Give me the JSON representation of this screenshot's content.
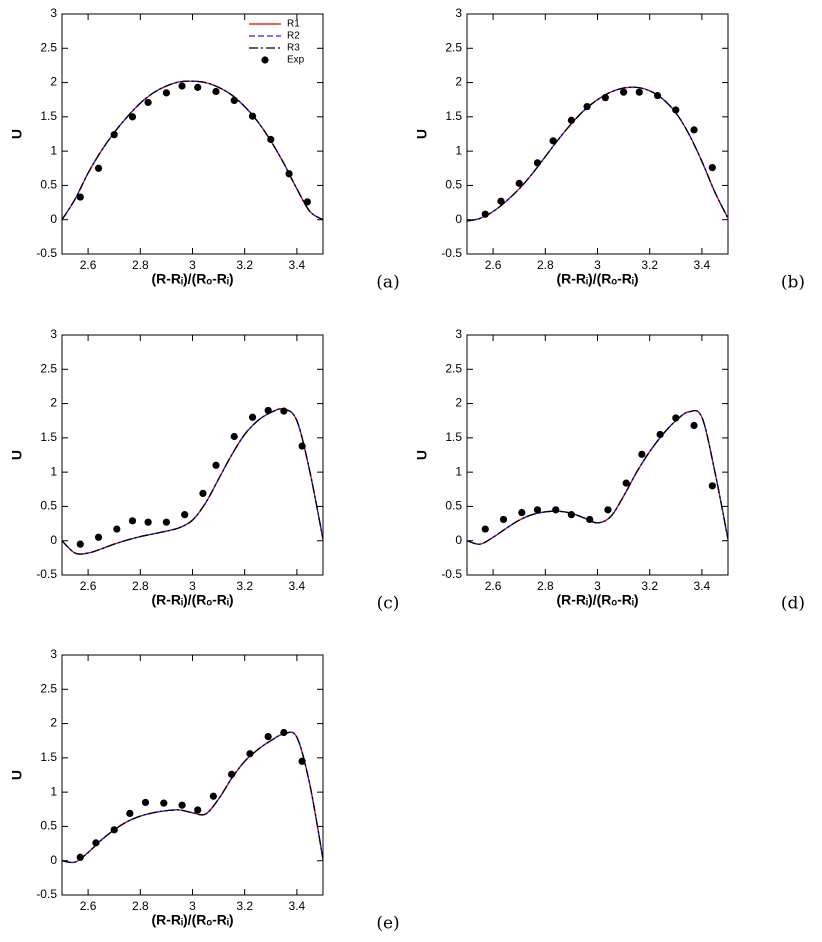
{
  "chart_data": [
    {
      "type": "line",
      "panel_label": "(a)",
      "xlabel": "(R-Rᵢ)/(Rₒ-Rᵢ)",
      "ylabel": "U",
      "legend": true,
      "legend_position": "upper right",
      "xlim": [
        2.5,
        3.5
      ],
      "ylim": [
        -0.5,
        3
      ],
      "xticks": [
        2.6,
        2.8,
        3,
        3.2,
        3.4
      ],
      "yticks": [
        -0.5,
        0,
        0.5,
        1,
        1.5,
        2,
        2.5,
        3
      ],
      "x": [
        2.5,
        2.55,
        2.6,
        2.65,
        2.7,
        2.75,
        2.8,
        2.85,
        2.9,
        2.95,
        3.0,
        3.05,
        3.1,
        3.15,
        3.2,
        3.25,
        3.3,
        3.35,
        3.4,
        3.45,
        3.5
      ],
      "series": [
        {
          "name": "R1",
          "color": "#e00000",
          "style": "solid",
          "values": [
            0,
            0.3,
            0.68,
            1.0,
            1.27,
            1.5,
            1.7,
            1.85,
            1.95,
            2.01,
            2.02,
            2.0,
            1.93,
            1.82,
            1.65,
            1.43,
            1.15,
            0.82,
            0.45,
            0.12,
            0
          ]
        },
        {
          "name": "R2",
          "color": "#2020ff",
          "style": "dashed",
          "values": [
            0,
            0.3,
            0.68,
            1.0,
            1.27,
            1.5,
            1.7,
            1.85,
            1.95,
            2.01,
            2.02,
            2.0,
            1.93,
            1.82,
            1.65,
            1.43,
            1.15,
            0.82,
            0.45,
            0.12,
            0
          ]
        },
        {
          "name": "R3",
          "color": "#000000",
          "style": "dashdot",
          "values": [
            0,
            0.3,
            0.68,
            1.0,
            1.27,
            1.5,
            1.7,
            1.85,
            1.95,
            2.01,
            2.02,
            2.0,
            1.93,
            1.82,
            1.65,
            1.43,
            1.15,
            0.82,
            0.45,
            0.12,
            0
          ]
        },
        {
          "name": "Exp",
          "color": "#000000",
          "style": "markers",
          "x": [
            2.57,
            2.64,
            2.7,
            2.77,
            2.83,
            2.9,
            2.96,
            3.02,
            3.09,
            3.16,
            3.23,
            3.3,
            3.37,
            3.44
          ],
          "values": [
            0.33,
            0.75,
            1.24,
            1.5,
            1.71,
            1.85,
            1.95,
            1.93,
            1.87,
            1.74,
            1.51,
            1.17,
            0.67,
            0.26
          ]
        }
      ]
    },
    {
      "type": "line",
      "panel_label": "(b)",
      "xlabel": "(R-Rᵢ)/(Rₒ-Rᵢ)",
      "ylabel": "U",
      "legend": false,
      "xlim": [
        2.5,
        3.5
      ],
      "ylim": [
        -0.5,
        3
      ],
      "xticks": [
        2.6,
        2.8,
        3,
        3.2,
        3.4
      ],
      "yticks": [
        -0.5,
        0,
        0.5,
        1,
        1.5,
        2,
        2.5,
        3
      ],
      "x": [
        2.5,
        2.55,
        2.6,
        2.65,
        2.7,
        2.75,
        2.8,
        2.85,
        2.9,
        2.95,
        3.0,
        3.05,
        3.1,
        3.15,
        3.2,
        3.25,
        3.3,
        3.35,
        3.4,
        3.45,
        3.5
      ],
      "series": [
        {
          "name": "R1",
          "color": "#e00000",
          "style": "solid",
          "values": [
            -0.02,
            0.02,
            0.12,
            0.27,
            0.45,
            0.67,
            0.92,
            1.17,
            1.4,
            1.6,
            1.75,
            1.86,
            1.92,
            1.93,
            1.88,
            1.76,
            1.56,
            1.25,
            0.85,
            0.4,
            0.02
          ]
        },
        {
          "name": "R2",
          "color": "#2020ff",
          "style": "dashed",
          "values": [
            -0.02,
            0.02,
            0.12,
            0.27,
            0.45,
            0.67,
            0.92,
            1.17,
            1.4,
            1.6,
            1.75,
            1.86,
            1.92,
            1.93,
            1.88,
            1.76,
            1.56,
            1.25,
            0.85,
            0.4,
            0.02
          ]
        },
        {
          "name": "R3",
          "color": "#000000",
          "style": "dashdot",
          "values": [
            -0.02,
            0.02,
            0.12,
            0.27,
            0.45,
            0.67,
            0.92,
            1.17,
            1.4,
            1.6,
            1.75,
            1.86,
            1.92,
            1.93,
            1.88,
            1.76,
            1.56,
            1.25,
            0.85,
            0.4,
            0.02
          ]
        },
        {
          "name": "Exp",
          "color": "#000000",
          "style": "markers",
          "x": [
            2.57,
            2.63,
            2.7,
            2.77,
            2.83,
            2.9,
            2.96,
            3.03,
            3.1,
            3.16,
            3.23,
            3.3,
            3.37,
            3.44
          ],
          "values": [
            0.08,
            0.27,
            0.53,
            0.83,
            1.15,
            1.45,
            1.65,
            1.78,
            1.86,
            1.86,
            1.81,
            1.6,
            1.31,
            0.76
          ]
        }
      ]
    },
    {
      "type": "line",
      "panel_label": "(c)",
      "xlabel": "(R-Rᵢ)/(Rₒ-Rᵢ)",
      "ylabel": "U",
      "legend": false,
      "xlim": [
        2.5,
        3.5
      ],
      "ylim": [
        -0.5,
        3
      ],
      "xticks": [
        2.6,
        2.8,
        3,
        3.2,
        3.4
      ],
      "yticks": [
        -0.5,
        0,
        0.5,
        1,
        1.5,
        2,
        2.5,
        3
      ],
      "x": [
        2.5,
        2.55,
        2.6,
        2.65,
        2.7,
        2.75,
        2.8,
        2.85,
        2.9,
        2.95,
        3.0,
        3.05,
        3.1,
        3.15,
        3.2,
        3.25,
        3.3,
        3.35,
        3.4,
        3.45,
        3.5
      ],
      "series": [
        {
          "name": "R1",
          "color": "#e00000",
          "style": "solid",
          "values": [
            0,
            -0.18,
            -0.18,
            -0.12,
            -0.05,
            0.01,
            0.06,
            0.1,
            0.14,
            0.19,
            0.3,
            0.55,
            0.9,
            1.25,
            1.55,
            1.75,
            1.87,
            1.92,
            1.75,
            1.0,
            0.02
          ]
        },
        {
          "name": "R2",
          "color": "#2020ff",
          "style": "dashed",
          "values": [
            0,
            -0.18,
            -0.18,
            -0.12,
            -0.05,
            0.01,
            0.06,
            0.1,
            0.14,
            0.19,
            0.3,
            0.55,
            0.9,
            1.25,
            1.55,
            1.75,
            1.87,
            1.92,
            1.75,
            1.0,
            0.02
          ]
        },
        {
          "name": "R3",
          "color": "#000000",
          "style": "dashdot",
          "values": [
            0,
            -0.18,
            -0.18,
            -0.12,
            -0.05,
            0.01,
            0.06,
            0.1,
            0.14,
            0.19,
            0.3,
            0.55,
            0.9,
            1.25,
            1.55,
            1.75,
            1.87,
            1.92,
            1.75,
            1.0,
            0.02
          ]
        },
        {
          "name": "Exp",
          "color": "#000000",
          "style": "markers",
          "x": [
            2.57,
            2.64,
            2.71,
            2.77,
            2.83,
            2.9,
            2.97,
            3.04,
            3.09,
            3.16,
            3.23,
            3.29,
            3.35,
            3.42
          ],
          "values": [
            -0.05,
            0.05,
            0.17,
            0.29,
            0.27,
            0.27,
            0.38,
            0.69,
            1.1,
            1.52,
            1.8,
            1.9,
            1.89,
            1.38
          ]
        }
      ]
    },
    {
      "type": "line",
      "panel_label": "(d)",
      "xlabel": "(R-Rᵢ)/(Rₒ-Rᵢ)",
      "ylabel": "U",
      "legend": false,
      "xlim": [
        2.5,
        3.5
      ],
      "ylim": [
        -0.5,
        3
      ],
      "xticks": [
        2.6,
        2.8,
        3,
        3.2,
        3.4
      ],
      "yticks": [
        -0.5,
        0,
        0.5,
        1,
        1.5,
        2,
        2.5,
        3
      ],
      "x": [
        2.5,
        2.55,
        2.6,
        2.65,
        2.7,
        2.75,
        2.8,
        2.85,
        2.9,
        2.95,
        3.0,
        3.05,
        3.1,
        3.15,
        3.2,
        3.25,
        3.3,
        3.35,
        3.4,
        3.45,
        3.5
      ],
      "series": [
        {
          "name": "R1",
          "color": "#e00000",
          "style": "solid",
          "values": [
            0,
            -0.05,
            0.05,
            0.18,
            0.3,
            0.38,
            0.42,
            0.43,
            0.4,
            0.33,
            0.26,
            0.35,
            0.65,
            1.0,
            1.3,
            1.55,
            1.75,
            1.88,
            1.8,
            1.0,
            0.02
          ]
        },
        {
          "name": "R2",
          "color": "#2020ff",
          "style": "dashed",
          "values": [
            0,
            -0.05,
            0.05,
            0.18,
            0.3,
            0.38,
            0.42,
            0.43,
            0.4,
            0.33,
            0.26,
            0.35,
            0.65,
            1.0,
            1.3,
            1.55,
            1.75,
            1.88,
            1.8,
            1.0,
            0.02
          ]
        },
        {
          "name": "R3",
          "color": "#000000",
          "style": "dashdot",
          "values": [
            0,
            -0.05,
            0.05,
            0.18,
            0.3,
            0.38,
            0.42,
            0.43,
            0.4,
            0.33,
            0.26,
            0.35,
            0.65,
            1.0,
            1.3,
            1.55,
            1.75,
            1.88,
            1.8,
            1.0,
            0.02
          ]
        },
        {
          "name": "Exp",
          "color": "#000000",
          "style": "markers",
          "x": [
            2.57,
            2.64,
            2.71,
            2.77,
            2.84,
            2.9,
            2.97,
            3.04,
            3.11,
            3.17,
            3.24,
            3.3,
            3.37,
            3.44
          ],
          "values": [
            0.17,
            0.31,
            0.41,
            0.45,
            0.45,
            0.38,
            0.31,
            0.45,
            0.84,
            1.26,
            1.55,
            1.79,
            1.68,
            0.8
          ]
        }
      ]
    },
    {
      "type": "line",
      "panel_label": "(e)",
      "xlabel": "(R-Rᵢ)/(Rₒ-Rᵢ)",
      "ylabel": "U",
      "legend": false,
      "xlim": [
        2.5,
        3.5
      ],
      "ylim": [
        -0.5,
        3
      ],
      "xticks": [
        2.6,
        2.8,
        3,
        3.2,
        3.4
      ],
      "yticks": [
        -0.5,
        0,
        0.5,
        1,
        1.5,
        2,
        2.5,
        3
      ],
      "x": [
        2.5,
        2.55,
        2.6,
        2.65,
        2.7,
        2.75,
        2.8,
        2.85,
        2.9,
        2.95,
        3.0,
        3.05,
        3.1,
        3.15,
        3.2,
        3.25,
        3.3,
        3.35,
        3.4,
        3.45,
        3.5
      ],
      "series": [
        {
          "name": "R1",
          "color": "#e00000",
          "style": "solid",
          "values": [
            0,
            -0.02,
            0.12,
            0.3,
            0.45,
            0.57,
            0.65,
            0.7,
            0.73,
            0.74,
            0.7,
            0.68,
            0.9,
            1.2,
            1.45,
            1.62,
            1.75,
            1.85,
            1.8,
            1.1,
            0.02
          ]
        },
        {
          "name": "R2",
          "color": "#2020ff",
          "style": "dashed",
          "values": [
            0,
            -0.02,
            0.12,
            0.3,
            0.45,
            0.57,
            0.65,
            0.7,
            0.73,
            0.74,
            0.7,
            0.68,
            0.9,
            1.2,
            1.45,
            1.62,
            1.75,
            1.85,
            1.8,
            1.1,
            0.02
          ]
        },
        {
          "name": "R3",
          "color": "#000000",
          "style": "dashdot",
          "values": [
            0,
            -0.02,
            0.12,
            0.3,
            0.45,
            0.57,
            0.65,
            0.7,
            0.73,
            0.74,
            0.7,
            0.68,
            0.9,
            1.2,
            1.45,
            1.62,
            1.75,
            1.85,
            1.8,
            1.1,
            0.02
          ]
        },
        {
          "name": "Exp",
          "color": "#000000",
          "style": "markers",
          "x": [
            2.57,
            2.63,
            2.7,
            2.76,
            2.82,
            2.89,
            2.96,
            3.02,
            3.08,
            3.15,
            3.22,
            3.29,
            3.35,
            3.42
          ],
          "values": [
            0.05,
            0.26,
            0.45,
            0.69,
            0.85,
            0.84,
            0.81,
            0.74,
            0.94,
            1.26,
            1.56,
            1.81,
            1.87,
            1.45
          ]
        }
      ]
    }
  ]
}
